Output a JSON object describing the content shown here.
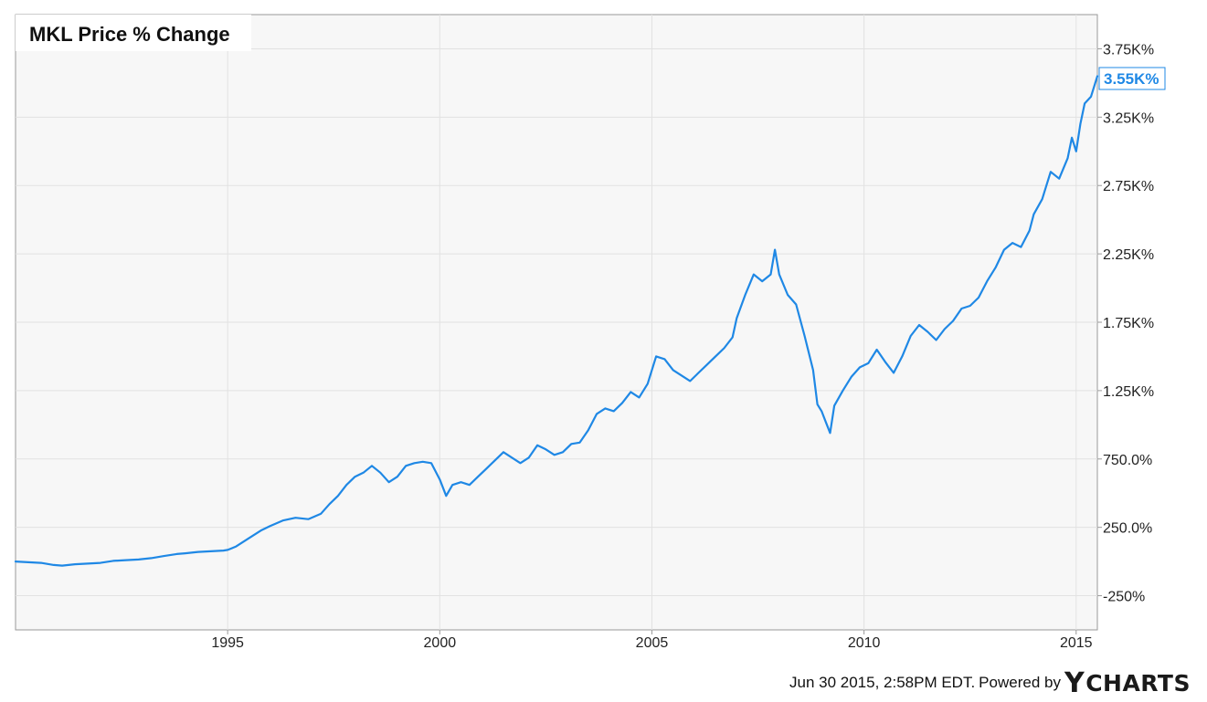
{
  "footer": {
    "timestamp": "Jun 30 2015, 2:58PM EDT.",
    "powered_by": "Powered by",
    "brand_y": "Y",
    "brand_rest": "CHARTS"
  },
  "chart_data": {
    "type": "line",
    "title": "MKL Price % Change",
    "ylabel_unit": "%",
    "series": [
      {
        "color": "#1f88e5",
        "last_value_label": "3.55K%",
        "points": [
          [
            1990.0,
            0
          ],
          [
            1990.3,
            -5
          ],
          [
            1990.6,
            -10
          ],
          [
            1990.9,
            -25
          ],
          [
            1991.1,
            -30
          ],
          [
            1991.4,
            -20
          ],
          [
            1991.7,
            -15
          ],
          [
            1992.0,
            -10
          ],
          [
            1992.3,
            5
          ],
          [
            1992.6,
            10
          ],
          [
            1992.9,
            15
          ],
          [
            1993.2,
            25
          ],
          [
            1993.5,
            40
          ],
          [
            1993.8,
            55
          ],
          [
            1994.0,
            60
          ],
          [
            1994.3,
            70
          ],
          [
            1994.6,
            75
          ],
          [
            1994.9,
            80
          ],
          [
            1995.0,
            85
          ],
          [
            1995.2,
            110
          ],
          [
            1995.5,
            170
          ],
          [
            1995.8,
            230
          ],
          [
            1996.0,
            260
          ],
          [
            1996.3,
            300
          ],
          [
            1996.6,
            320
          ],
          [
            1996.9,
            310
          ],
          [
            1997.2,
            350
          ],
          [
            1997.4,
            420
          ],
          [
            1997.6,
            480
          ],
          [
            1997.8,
            560
          ],
          [
            1998.0,
            620
          ],
          [
            1998.2,
            650
          ],
          [
            1998.4,
            700
          ],
          [
            1998.6,
            650
          ],
          [
            1998.8,
            580
          ],
          [
            1999.0,
            620
          ],
          [
            1999.2,
            700
          ],
          [
            1999.4,
            720
          ],
          [
            1999.6,
            730
          ],
          [
            1999.8,
            720
          ],
          [
            2000.0,
            600
          ],
          [
            2000.15,
            480
          ],
          [
            2000.3,
            560
          ],
          [
            2000.5,
            580
          ],
          [
            2000.7,
            560
          ],
          [
            2000.9,
            620
          ],
          [
            2001.1,
            680
          ],
          [
            2001.3,
            740
          ],
          [
            2001.5,
            800
          ],
          [
            2001.7,
            760
          ],
          [
            2001.9,
            720
          ],
          [
            2002.1,
            760
          ],
          [
            2002.3,
            850
          ],
          [
            2002.5,
            820
          ],
          [
            2002.7,
            780
          ],
          [
            2002.9,
            800
          ],
          [
            2003.1,
            860
          ],
          [
            2003.3,
            870
          ],
          [
            2003.5,
            960
          ],
          [
            2003.7,
            1080
          ],
          [
            2003.9,
            1120
          ],
          [
            2004.1,
            1100
          ],
          [
            2004.3,
            1160
          ],
          [
            2004.5,
            1240
          ],
          [
            2004.7,
            1200
          ],
          [
            2004.9,
            1300
          ],
          [
            2005.1,
            1500
          ],
          [
            2005.3,
            1480
          ],
          [
            2005.5,
            1400
          ],
          [
            2005.7,
            1360
          ],
          [
            2005.9,
            1320
          ],
          [
            2006.1,
            1380
          ],
          [
            2006.3,
            1440
          ],
          [
            2006.5,
            1500
          ],
          [
            2006.7,
            1560
          ],
          [
            2006.9,
            1640
          ],
          [
            2007.0,
            1780
          ],
          [
            2007.2,
            1950
          ],
          [
            2007.4,
            2100
          ],
          [
            2007.6,
            2050
          ],
          [
            2007.8,
            2100
          ],
          [
            2007.9,
            2280
          ],
          [
            2008.0,
            2100
          ],
          [
            2008.2,
            1950
          ],
          [
            2008.4,
            1880
          ],
          [
            2008.6,
            1650
          ],
          [
            2008.8,
            1400
          ],
          [
            2008.9,
            1150
          ],
          [
            2009.0,
            1100
          ],
          [
            2009.1,
            1020
          ],
          [
            2009.2,
            940
          ],
          [
            2009.3,
            1140
          ],
          [
            2009.5,
            1250
          ],
          [
            2009.7,
            1350
          ],
          [
            2009.9,
            1420
          ],
          [
            2010.1,
            1450
          ],
          [
            2010.3,
            1550
          ],
          [
            2010.5,
            1460
          ],
          [
            2010.7,
            1380
          ],
          [
            2010.9,
            1500
          ],
          [
            2011.1,
            1650
          ],
          [
            2011.3,
            1730
          ],
          [
            2011.5,
            1680
          ],
          [
            2011.7,
            1620
          ],
          [
            2011.9,
            1700
          ],
          [
            2012.1,
            1760
          ],
          [
            2012.3,
            1850
          ],
          [
            2012.5,
            1870
          ],
          [
            2012.7,
            1930
          ],
          [
            2012.9,
            2050
          ],
          [
            2013.1,
            2150
          ],
          [
            2013.3,
            2280
          ],
          [
            2013.5,
            2330
          ],
          [
            2013.7,
            2300
          ],
          [
            2013.9,
            2420
          ],
          [
            2014.0,
            2540
          ],
          [
            2014.2,
            2650
          ],
          [
            2014.4,
            2850
          ],
          [
            2014.6,
            2800
          ],
          [
            2014.8,
            2950
          ],
          [
            2014.9,
            3100
          ],
          [
            2015.0,
            3000
          ],
          [
            2015.1,
            3200
          ],
          [
            2015.2,
            3350
          ],
          [
            2015.35,
            3400
          ],
          [
            2015.5,
            3550
          ]
        ]
      }
    ],
    "x_ticks": [
      {
        "value": 1995,
        "label": "1995"
      },
      {
        "value": 2000,
        "label": "2000"
      },
      {
        "value": 2005,
        "label": "2005"
      },
      {
        "value": 2010,
        "label": "2010"
      },
      {
        "value": 2015,
        "label": "2015"
      }
    ],
    "y_ticks": [
      {
        "value": 3750,
        "label": "3.75K%"
      },
      {
        "value": 3250,
        "label": "3.25K%"
      },
      {
        "value": 2750,
        "label": "2.75K%"
      },
      {
        "value": 2250,
        "label": "2.25K%"
      },
      {
        "value": 1750,
        "label": "1.75K%"
      },
      {
        "value": 1250,
        "label": "1.25K%"
      },
      {
        "value": 750,
        "label": "750.0%"
      },
      {
        "value": 250,
        "label": "250.0%"
      },
      {
        "value": -250,
        "label": "-250%"
      }
    ],
    "xlim": [
      1990,
      2015.5
    ],
    "ylim": [
      -500,
      4000
    ],
    "grid": true,
    "legend": "none"
  }
}
